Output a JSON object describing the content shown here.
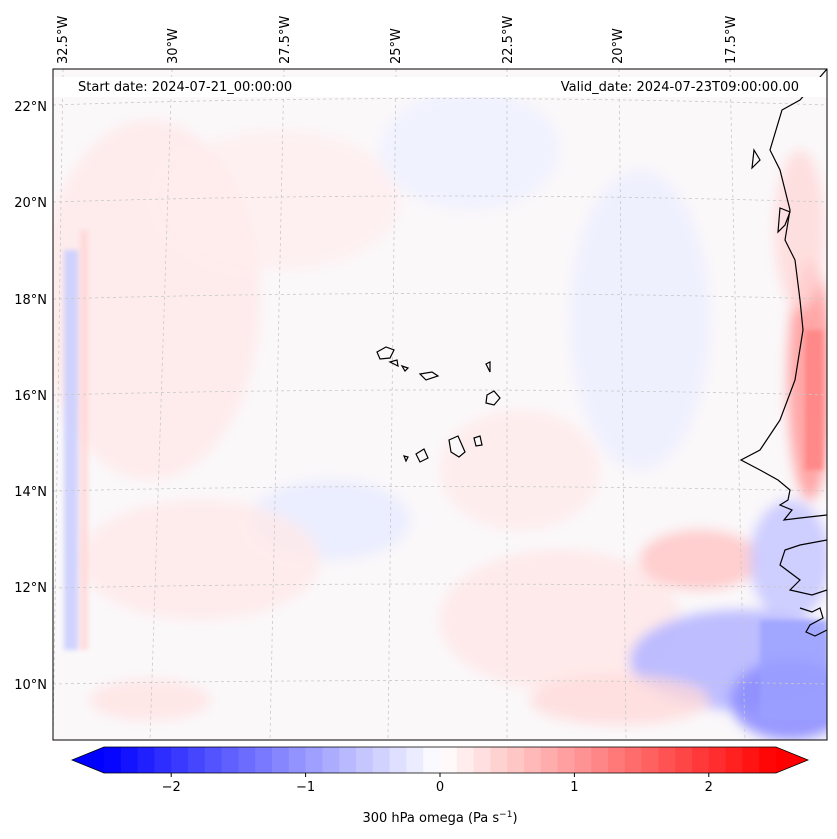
{
  "map": {
    "start_date": "Start date: 2024-07-21_00:00:00",
    "valid_date": "Valid_date: 2024-07-23T09:00:00.00",
    "lon_labels": [
      "32.5°W",
      "30°W",
      "27.5°W",
      "25°W",
      "22.5°W",
      "20°W",
      "17.5°W"
    ],
    "lat_labels": [
      "22°N",
      "20°N",
      "18°N",
      "16°N",
      "14°N",
      "12°N",
      "10°N"
    ],
    "gridlines": "dashed",
    "field": "300 hPa omega",
    "region": "Cabo Verde / West African coast",
    "palette": "blue-white-red (bwr)"
  },
  "colorbar": {
    "label": "300 hPa omega (Pa s",
    "label_sup": "−1",
    "label_close": ")",
    "ticks": [
      "−2",
      "−1",
      "0",
      "1",
      "2"
    ],
    "tick_values": [
      -2,
      -1,
      0,
      1,
      2
    ],
    "range": [
      -2.5,
      2.5
    ],
    "extend": "both",
    "colors": {
      "low": "#0000ff",
      "mid": "#ffffff",
      "high": "#ff0000"
    }
  }
}
